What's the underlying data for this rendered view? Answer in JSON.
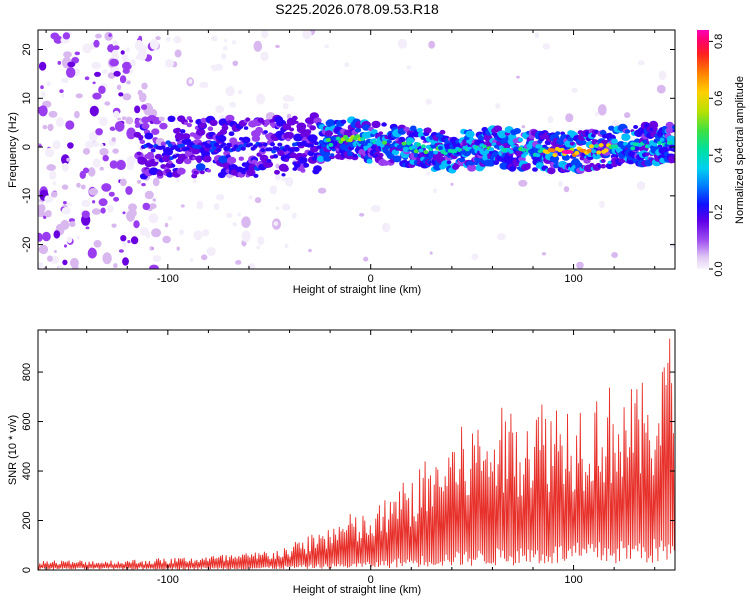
{
  "title": "S225.2026.078.09.53.R18",
  "chart_data": [
    {
      "type": "heatmap",
      "xlabel": "Height of straight line (km)",
      "ylabel": "Frequency (Hz)",
      "xlim": [
        -164,
        150
      ],
      "ylim": [
        -25,
        24
      ],
      "xticks": [
        -100,
        0,
        100
      ],
      "xtick_labels": [
        "-100",
        "0",
        "100"
      ],
      "yticks": [
        20,
        10,
        0,
        -10,
        -20
      ],
      "ytick_labels": [
        "20",
        "10",
        "0",
        "-10",
        "-20"
      ],
      "colorbar": {
        "label": "Normalized spectral amplitude",
        "range": [
          0,
          0.84
        ],
        "ticks": [
          0.0,
          0.2,
          0.4,
          0.6,
          0.8
        ],
        "tick_labels": [
          "0.0",
          "0.2",
          "0.4",
          "0.6",
          "0.8"
        ],
        "colors": [
          "#f4eefb",
          "#d9b8f0",
          "#9a3cf0",
          "#6a00e0",
          "#2a00ff",
          "#0040ff",
          "#00c0ff",
          "#00e0a0",
          "#40e040",
          "#b0e000",
          "#ffd000",
          "#ff8000",
          "#ff2020",
          "#ff0060",
          "#ff00b0"
        ]
      },
      "ridge": {
        "frequency_track": [
          [
            -110,
            0
          ],
          [
            -80,
            0
          ],
          [
            -40,
            0
          ],
          [
            -20,
            1
          ],
          [
            -10,
            2
          ],
          [
            0,
            1
          ],
          [
            20,
            0
          ],
          [
            40,
            -1
          ],
          [
            60,
            0
          ],
          [
            80,
            -1
          ],
          [
            100,
            -1
          ],
          [
            120,
            0
          ],
          [
            150,
            1
          ]
        ],
        "peak_x": 97,
        "peak_value": 0.84
      },
      "grid": false
    },
    {
      "type": "line",
      "xlabel": "Height of straight line (km)",
      "ylabel": "SNR (10 * v/v)",
      "xlim": [
        -164,
        150
      ],
      "ylim": [
        0,
        970
      ],
      "xticks": [
        -100,
        0,
        100
      ],
      "xtick_labels": [
        "-100",
        "0",
        "100"
      ],
      "yticks": [
        0,
        200,
        400,
        600,
        800
      ],
      "ytick_labels": [
        "0",
        "200",
        "400",
        "600",
        "800"
      ],
      "series": [
        {
          "color": "#e8302a",
          "envelope": [
            [
              -164,
              40
            ],
            [
              -140,
              40
            ],
            [
              -120,
              42
            ],
            [
              -100,
              50
            ],
            [
              -80,
              60
            ],
            [
              -60,
              70
            ],
            [
              -40,
              100
            ],
            [
              -30,
              150
            ],
            [
              -20,
              190
            ],
            [
              -10,
              230
            ],
            [
              0,
              230
            ],
            [
              10,
              320
            ],
            [
              20,
              390
            ],
            [
              30,
              470
            ],
            [
              40,
              560
            ],
            [
              50,
              610
            ],
            [
              60,
              640
            ],
            [
              70,
              680
            ],
            [
              80,
              700
            ],
            [
              90,
              720
            ],
            [
              100,
              700
            ],
            [
              110,
              740
            ],
            [
              120,
              760
            ],
            [
              130,
              740
            ],
            [
              140,
              790
            ],
            [
              146,
              980
            ],
            [
              150,
              930
            ]
          ],
          "floor": [
            [
              -164,
              8
            ],
            [
              -60,
              10
            ],
            [
              -30,
              20
            ],
            [
              0,
              30
            ],
            [
              30,
              60
            ],
            [
              60,
              80
            ],
            [
              100,
              100
            ],
            [
              150,
              120
            ]
          ]
        }
      ],
      "grid": false
    }
  ]
}
